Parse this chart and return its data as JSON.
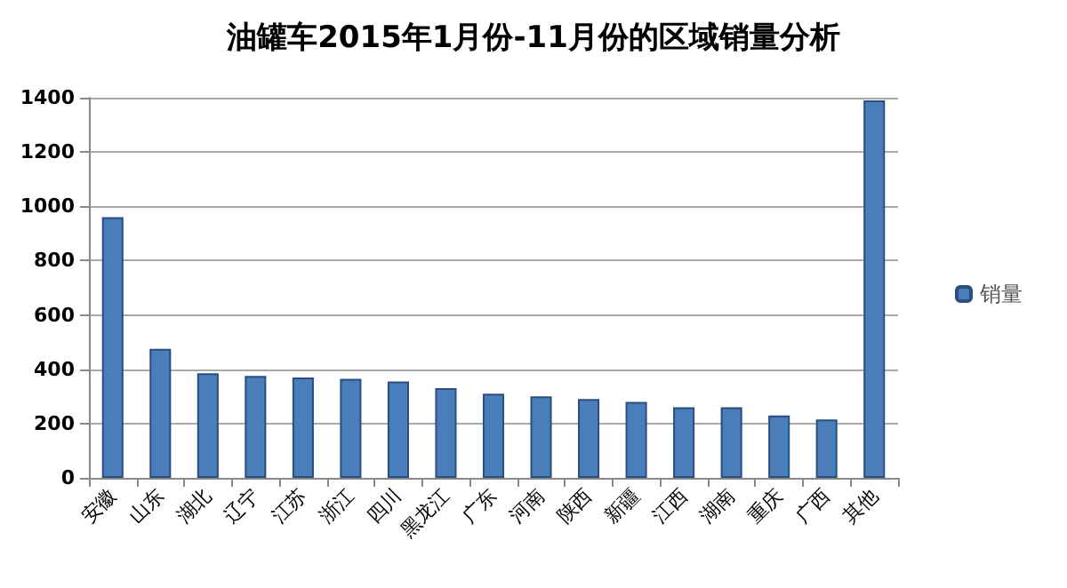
{
  "chart_data": {
    "type": "bar",
    "title": "油罐车2015年1月份-11月份的区域销量分析",
    "categories": [
      "安徽",
      "山东",
      "湖北",
      "辽宁",
      "江苏",
      "浙江",
      "四川",
      "黑龙江",
      "广东",
      "河南",
      "陕西",
      "新疆",
      "江西",
      "湖南",
      "重庆",
      "广西",
      "其他"
    ],
    "series": [
      {
        "name": "销量",
        "color": "#4a7ebb",
        "values": [
          960,
          475,
          385,
          375,
          370,
          365,
          355,
          330,
          310,
          300,
          290,
          280,
          260,
          260,
          230,
          215,
          1390
        ]
      }
    ],
    "ylim": [
      0,
      1400
    ],
    "yticks": [
      0,
      200,
      400,
      600,
      800,
      1000,
      1200,
      1400
    ],
    "grid": "y",
    "legend": "right"
  }
}
